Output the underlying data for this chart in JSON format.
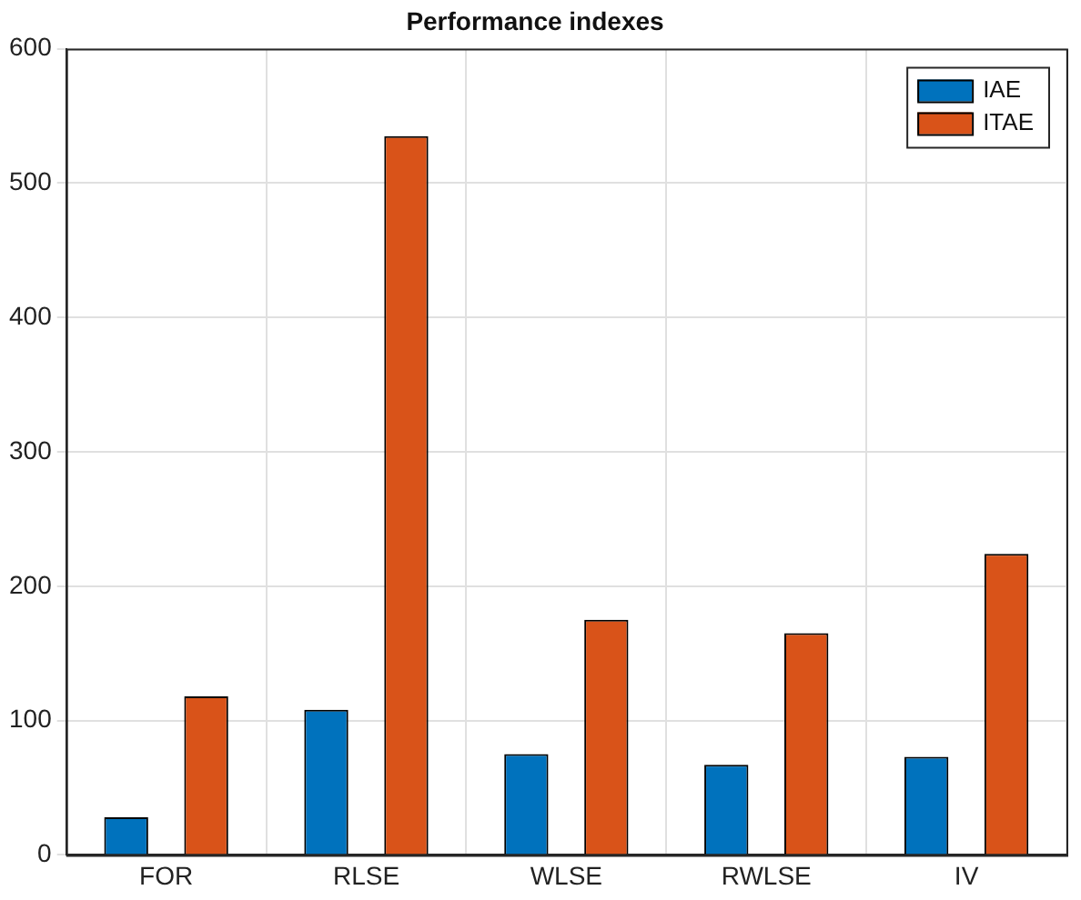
{
  "chart_data": {
    "type": "bar",
    "title": "Performance indexes",
    "categories": [
      "FOR",
      "RLSE",
      "WLSE",
      "RWLSE",
      "IV"
    ],
    "series": [
      {
        "name": "IAE",
        "color": "#0072bd",
        "values": [
          28,
          108,
          75,
          67,
          73
        ]
      },
      {
        "name": "ITAE",
        "color": "#d95319",
        "values": [
          118,
          535,
          175,
          165,
          224
        ]
      }
    ],
    "ylim": [
      0,
      600
    ],
    "yticks": [
      0,
      100,
      200,
      300,
      400,
      500,
      600
    ],
    "grid": true,
    "legend": "top right"
  }
}
